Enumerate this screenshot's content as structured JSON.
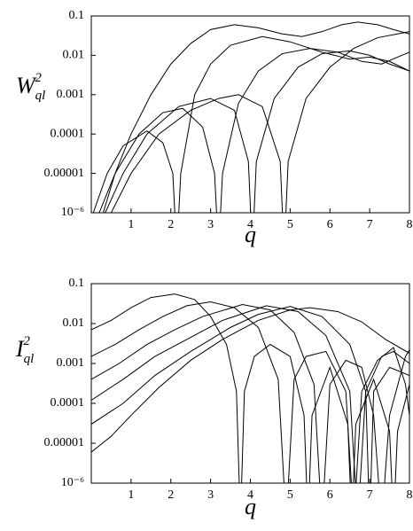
{
  "chart_data": [
    {
      "type": "line",
      "xlabel": "q",
      "ylabel": {
        "base": "W",
        "sub": "ql",
        "sup": "2"
      },
      "xlim": [
        0,
        8
      ],
      "ylim": [
        1e-06,
        0.1
      ],
      "log_y": true,
      "xticks": [
        1,
        2,
        3,
        4,
        5,
        6,
        7,
        8
      ],
      "yticks": [
        {
          "value": 1e-06,
          "label": "10⁻⁶"
        },
        {
          "value": 1e-05,
          "label": "0.00001"
        },
        0.0001,
        0.001,
        0.01,
        0.1
      ],
      "series": [
        {
          "color": "#000000",
          "x": [
            0.3,
            0.6,
            1,
            1.5,
            2,
            2.5,
            3,
            3.6,
            4.2,
            4.8,
            5.3,
            5.8,
            6.3,
            6.7,
            7.2,
            7.6,
            8
          ],
          "values": [
            1e-06,
            1e-05,
            0.0001,
            0.001,
            0.006,
            0.02,
            0.045,
            0.06,
            0.05,
            0.035,
            0.03,
            0.04,
            0.06,
            0.07,
            0.06,
            0.045,
            0.035
          ]
        },
        {
          "color": "#000000",
          "x": [
            0.05,
            0.4,
            0.8,
            1.4,
            1.8,
            2.05,
            2.15,
            2.25,
            2.6,
            3,
            3.5,
            4.3,
            5,
            5.8,
            6.5,
            7,
            7.5,
            8
          ],
          "values": [
            1e-06,
            1e-05,
            5e-05,
            0.00012,
            6e-05,
            1e-05,
            1e-07,
            1e-05,
            0.001,
            0.006,
            0.018,
            0.03,
            0.022,
            0.012,
            0.008,
            0.009,
            0.007,
            0.004
          ]
        },
        {
          "color": "#000000",
          "x": [
            0.2,
            0.6,
            1.2,
            1.8,
            2.3,
            2.8,
            3.1,
            3.2,
            3.3,
            3.7,
            4.2,
            4.8,
            5.5,
            6.2,
            6.8,
            7.3,
            7.7,
            8
          ],
          "values": [
            1e-06,
            1e-05,
            0.0001,
            0.00035,
            0.00045,
            0.00015,
            1e-05,
            1e-07,
            1e-05,
            0.0006,
            0.004,
            0.011,
            0.015,
            0.012,
            0.007,
            0.006,
            0.009,
            0.012
          ]
        },
        {
          "color": "#000000",
          "x": [
            0.35,
            0.8,
            1.4,
            2.2,
            3,
            3.6,
            3.95,
            4.05,
            4.15,
            4.6,
            5.2,
            5.8,
            6.5,
            7,
            7.5,
            8
          ],
          "values": [
            1e-06,
            1e-05,
            0.0001,
            0.0005,
            0.0008,
            0.0004,
            2e-05,
            1e-07,
            2e-05,
            0.0008,
            0.005,
            0.011,
            0.013,
            0.01,
            0.006,
            0.004
          ]
        },
        {
          "color": "#000000",
          "x": [
            0.5,
            1,
            1.7,
            2.5,
            3.2,
            3.7,
            4.3,
            4.75,
            4.85,
            4.95,
            5.4,
            6,
            6.6,
            7.2,
            7.7,
            8
          ],
          "values": [
            1e-06,
            1e-05,
            0.0001,
            0.0004,
            0.0008,
            0.001,
            0.0005,
            2e-05,
            1e-07,
            2e-05,
            0.0008,
            0.005,
            0.015,
            0.028,
            0.035,
            0.04
          ]
        }
      ]
    },
    {
      "type": "line",
      "xlabel": "q",
      "ylabel": {
        "base": "I",
        "sub": "ql",
        "sup": "2"
      },
      "xlim": [
        0,
        8
      ],
      "ylim": [
        1e-06,
        0.1
      ],
      "log_y": true,
      "xticks": [
        1,
        2,
        3,
        4,
        5,
        6,
        7,
        8
      ],
      "yticks": [
        {
          "value": 1e-06,
          "label": "10⁻⁶"
        },
        {
          "value": 1e-05,
          "label": "0.00001"
        },
        0.0001,
        0.001,
        0.01,
        0.1
      ],
      "series": [
        {
          "color": "#000000",
          "x": [
            0,
            0.5,
            1,
            1.5,
            2.1,
            2.6,
            3,
            3.4,
            3.65,
            3.75,
            3.85,
            4.1,
            4.5,
            5,
            5.35,
            5.45,
            5.55,
            6,
            6.45,
            6.55,
            6.65,
            7.1,
            7.5,
            7.6,
            7.7,
            8
          ],
          "values": [
            0.007,
            0.012,
            0.025,
            0.045,
            0.055,
            0.04,
            0.015,
            0.003,
            0.0002,
            1e-07,
            0.0002,
            0.0015,
            0.003,
            0.0015,
            5e-05,
            1e-07,
            5e-05,
            0.0008,
            3e-05,
            1e-07,
            3e-05,
            0.0004,
            2e-05,
            1e-07,
            2e-05,
            0.0003
          ]
        },
        {
          "color": "#000000",
          "x": [
            0,
            0.6,
            1.2,
            1.8,
            2.4,
            3,
            3.6,
            4.2,
            4.7,
            4.9,
            5.1,
            5.4,
            5.9,
            6.4,
            6.6,
            6.8,
            7.2,
            7.6,
            7.9,
            8
          ],
          "values": [
            0.0015,
            0.003,
            0.007,
            0.015,
            0.028,
            0.035,
            0.025,
            0.008,
            0.0004,
            1e-07,
            0.0004,
            0.0015,
            0.002,
            0.0002,
            1e-07,
            0.0002,
            0.0012,
            0.0025,
            0.0003,
            5e-05
          ]
        },
        {
          "color": "#000000",
          "x": [
            0,
            0.7,
            1.4,
            2.1,
            2.8,
            3.8,
            4.5,
            5.1,
            5.6,
            5.8,
            6,
            6.4,
            6.8,
            7.1,
            7.3,
            7.5,
            7.9,
            8
          ],
          "values": [
            0.0004,
            0.001,
            0.003,
            0.007,
            0.015,
            0.03,
            0.022,
            0.006,
            0.0003,
            1e-07,
            0.0003,
            0.0012,
            0.0008,
            5e-05,
            1e-07,
            5e-05,
            0.0015,
            0.0022
          ]
        },
        {
          "color": "#000000",
          "x": [
            0,
            0.8,
            1.6,
            2.4,
            3.3,
            4.4,
            5.2,
            5.9,
            6.5,
            6.7,
            6.9,
            7.3,
            7.6,
            8
          ],
          "values": [
            0.00012,
            0.0004,
            0.0015,
            0.004,
            0.012,
            0.028,
            0.02,
            0.005,
            0.0002,
            1e-07,
            0.0002,
            0.0015,
            0.002,
            0.001
          ]
        },
        {
          "color": "#000000",
          "x": [
            0,
            0.8,
            1.6,
            2.5,
            3.5,
            4.2,
            5,
            5.8,
            6.5,
            6.9,
            7,
            7.1,
            7.5,
            8
          ],
          "values": [
            3e-05,
            0.0001,
            0.0005,
            0.002,
            0.008,
            0.017,
            0.027,
            0.015,
            0.003,
            0.0002,
            1e-07,
            0.0002,
            0.0008,
            0.0005
          ]
        },
        {
          "color": "#000000",
          "x": [
            0,
            0.5,
            1,
            1.7,
            2.5,
            3.3,
            4.2,
            5,
            5.5,
            6.2,
            6.8,
            7.4,
            8
          ],
          "values": [
            6e-06,
            1.5e-05,
            5e-05,
            0.00025,
            0.0012,
            0.004,
            0.012,
            0.022,
            0.025,
            0.02,
            0.011,
            0.004,
            0.0018
          ]
        }
      ]
    }
  ]
}
